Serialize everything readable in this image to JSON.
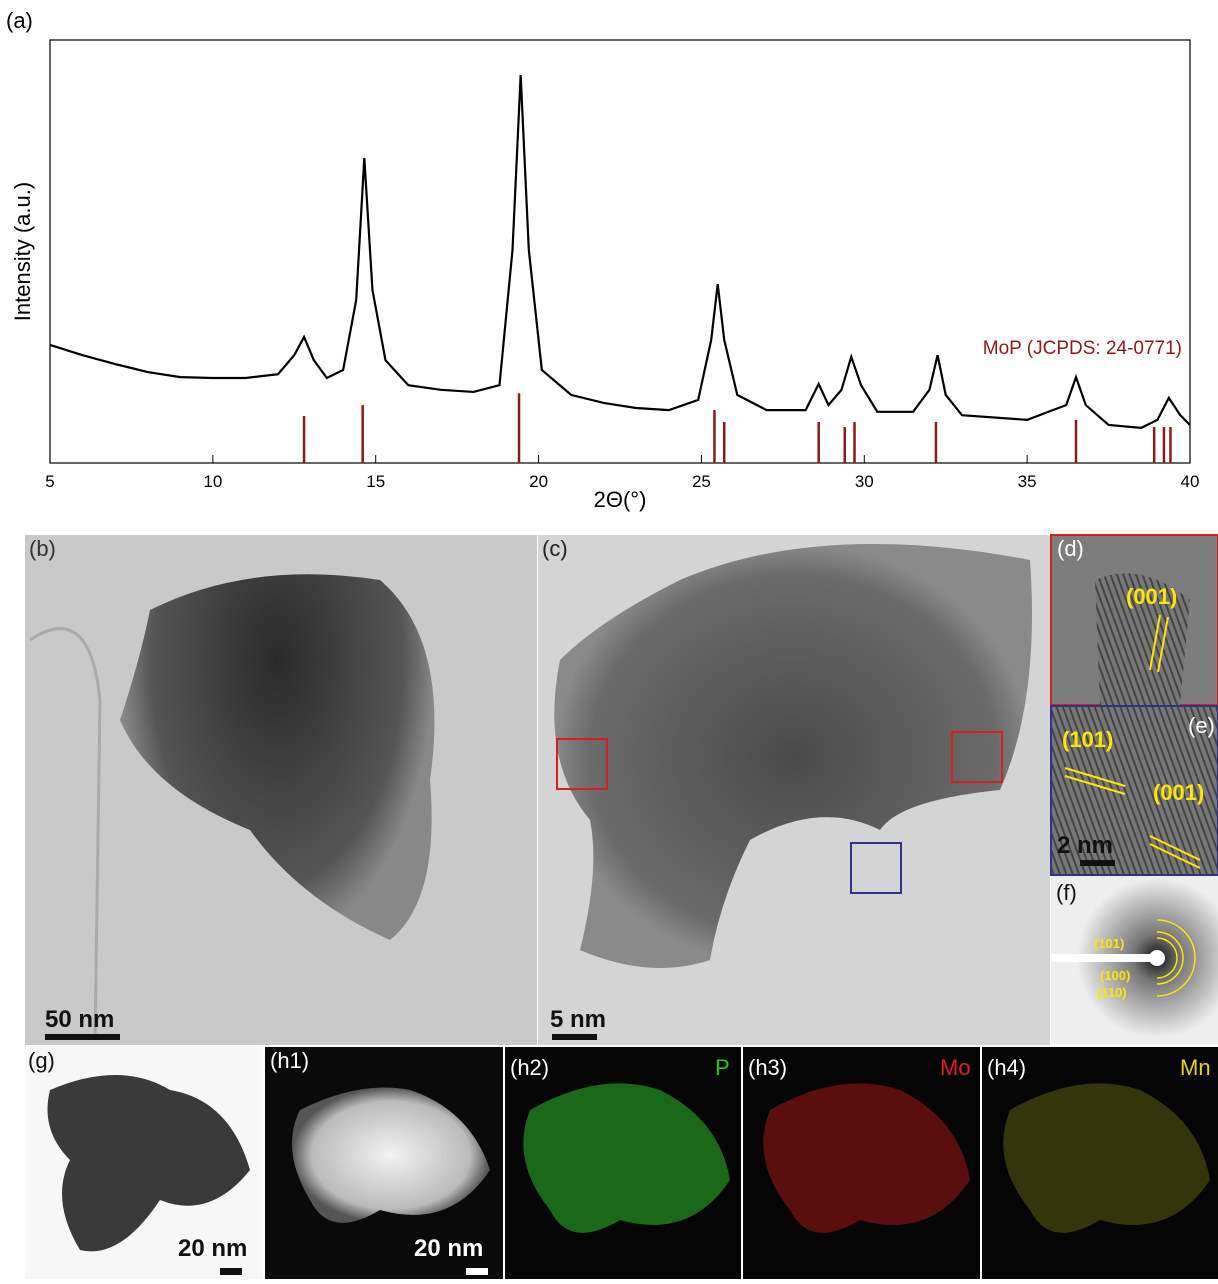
{
  "figure_label": "(a)",
  "chart_data": {
    "type": "line",
    "x_label": "2Θ(°)",
    "y_label": "Intensity (a.u.)",
    "xlim": [
      5,
      40
    ],
    "xticks": [
      5,
      10,
      15,
      20,
      25,
      30,
      35,
      40
    ],
    "ylim": [
      0,
      100
    ],
    "series": [
      {
        "type": "line",
        "color": "#000000",
        "x": [
          5,
          6,
          7,
          8,
          9,
          10,
          11,
          12,
          12.5,
          12.8,
          13.1,
          13.5,
          14,
          14.4,
          14.65,
          14.9,
          15.3,
          16,
          17,
          18,
          18.8,
          19.2,
          19.45,
          19.7,
          20.1,
          21,
          22,
          23,
          24,
          24.9,
          25.3,
          25.5,
          25.7,
          26.1,
          27,
          28.2,
          28.6,
          28.9,
          29.3,
          29.6,
          29.9,
          30.4,
          31.5,
          32,
          32.25,
          32.5,
          33,
          35,
          36.2,
          36.5,
          36.8,
          37.5,
          38.5,
          39,
          39.35,
          39.7,
          40
        ],
        "values": [
          27.9,
          25.5,
          23.4,
          21.5,
          20.3,
          20.1,
          20.1,
          21.0,
          25.5,
          29.8,
          24.3,
          20.1,
          22.0,
          38.5,
          72.1,
          40.9,
          24.3,
          18.4,
          17.3,
          16.8,
          18.4,
          50.4,
          91.7,
          50.4,
          22.0,
          16.1,
          14.2,
          13.0,
          12.5,
          14.9,
          29.1,
          42.3,
          29.1,
          16.1,
          12.5,
          12.5,
          18.7,
          13.7,
          17.3,
          25.1,
          18.4,
          12.1,
          12.1,
          17.3,
          25.5,
          16.1,
          11.3,
          10.2,
          13.7,
          20.3,
          13.7,
          9.0,
          8.3,
          10.2,
          15.4,
          11.3,
          9.0
        ]
      },
      {
        "type": "stick",
        "name": "MoP (JCPDS: 24-0771)",
        "color": "#8b1a1a",
        "x": [
          12.8,
          14.6,
          19.4,
          25.4,
          25.7,
          28.6,
          29.4,
          29.7,
          32.2,
          36.5,
          38.9,
          39.2,
          39.4
        ],
        "values": [
          11.1,
          13.7,
          16.5,
          12.5,
          9.7,
          9.7,
          8.5,
          9.7,
          9.7,
          10.2,
          8.5,
          8.5,
          8.5
        ]
      }
    ]
  },
  "panels": {
    "b": {
      "label": "(b)",
      "scale_bar": "50 nm"
    },
    "c": {
      "label": "(c)",
      "scale_bar": "5 nm"
    },
    "d": {
      "label": "(d)",
      "plane": "(001)"
    },
    "e": {
      "label": "(e)",
      "planes": [
        "(101)",
        "(001)"
      ],
      "scale_bar": "2 nm"
    },
    "f": {
      "label": "(f)",
      "rings": [
        "(101)",
        "(100)",
        "(110)"
      ]
    },
    "g": {
      "label": "(g)",
      "scale_bar": "20 nm"
    },
    "h1": {
      "label": "(h1)",
      "scale_bar": "20 nm"
    },
    "h2": {
      "label": "(h2)",
      "element": "P"
    },
    "h3": {
      "label": "(h3)",
      "element": "Mo"
    },
    "h4": {
      "label": "(h4)",
      "element": "Mn"
    }
  }
}
